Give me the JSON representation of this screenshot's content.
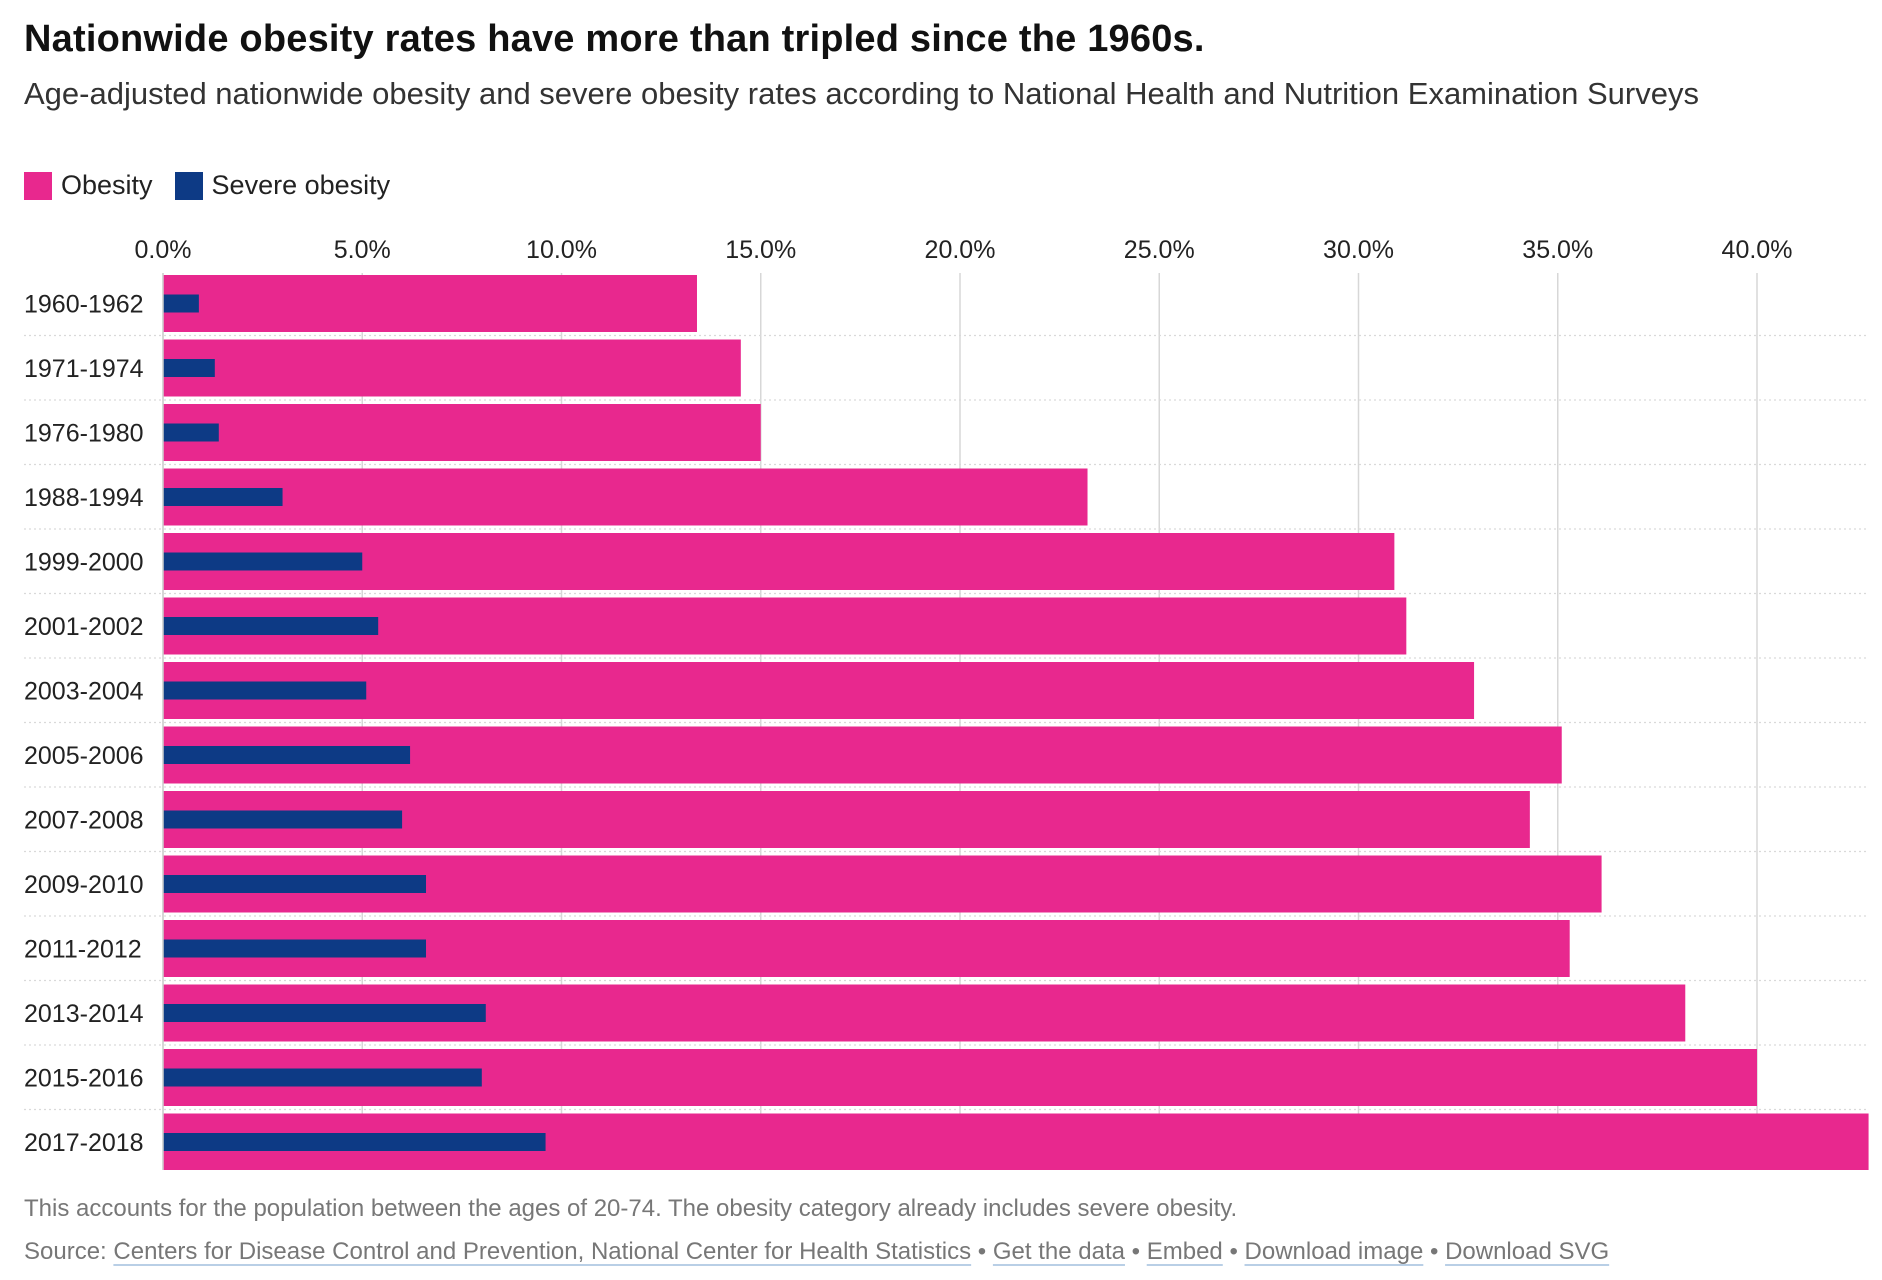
{
  "header": {
    "title": "Nationwide obesity rates have more than tripled since the 1960s.",
    "subtitle": "Age-adjusted nationwide obesity and severe obesity rates according to National Health and Nutrition Examination Surveys"
  },
  "legend": {
    "obesity_label": "Obesity",
    "severe_label": "Severe obesity"
  },
  "colors": {
    "obesity": "#e8288e",
    "severe": "#0d3a85",
    "grid": "#d7d7d7",
    "row_separator": "#d9d9d9"
  },
  "chart_data": {
    "type": "bar",
    "orientation": "horizontal",
    "title": "Nationwide obesity rates have more than tripled since the 1960s.",
    "subtitle": "Age-adjusted nationwide obesity and severe obesity rates according to National Health and Nutrition Examination Surveys",
    "xlabel": "",
    "ylabel": "",
    "xlim": [
      0,
      42.8
    ],
    "x_ticks": [
      0,
      5,
      10,
      15,
      20,
      25,
      30,
      35,
      40
    ],
    "x_tick_labels": [
      "0.0%",
      "5.0%",
      "10.0%",
      "15.0%",
      "20.0%",
      "25.0%",
      "30.0%",
      "35.0%",
      "40.0%"
    ],
    "grid": true,
    "legend_position": "top-left",
    "categories": [
      "1960-1962",
      "1971-1974",
      "1976-1980",
      "1988-1994",
      "1999-2000",
      "2001-2002",
      "2003-2004",
      "2005-2006",
      "2007-2008",
      "2009-2010",
      "2011-2012",
      "2013-2014",
      "2015-2016",
      "2017-2018"
    ],
    "series": [
      {
        "name": "Obesity",
        "values": [
          13.4,
          14.5,
          15.0,
          23.2,
          30.9,
          31.2,
          32.9,
          35.1,
          34.3,
          36.1,
          35.3,
          38.2,
          40.0,
          42.8
        ]
      },
      {
        "name": "Severe obesity",
        "values": [
          0.9,
          1.3,
          1.4,
          3.0,
          5.0,
          5.4,
          5.1,
          6.2,
          6.0,
          6.6,
          6.6,
          8.1,
          8.0,
          9.6
        ]
      }
    ]
  },
  "footer": {
    "note": "This accounts for the population between the ages of 20-74. The obesity category already includes severe obesity.",
    "source_prefix": "Source: ",
    "source_link": "Centers for Disease Control and Prevention, National Center for Health Statistics",
    "separator": " • ",
    "get_data": "Get the data",
    "embed": "Embed",
    "download_image": "Download image",
    "download_svg": "Download SVG"
  }
}
